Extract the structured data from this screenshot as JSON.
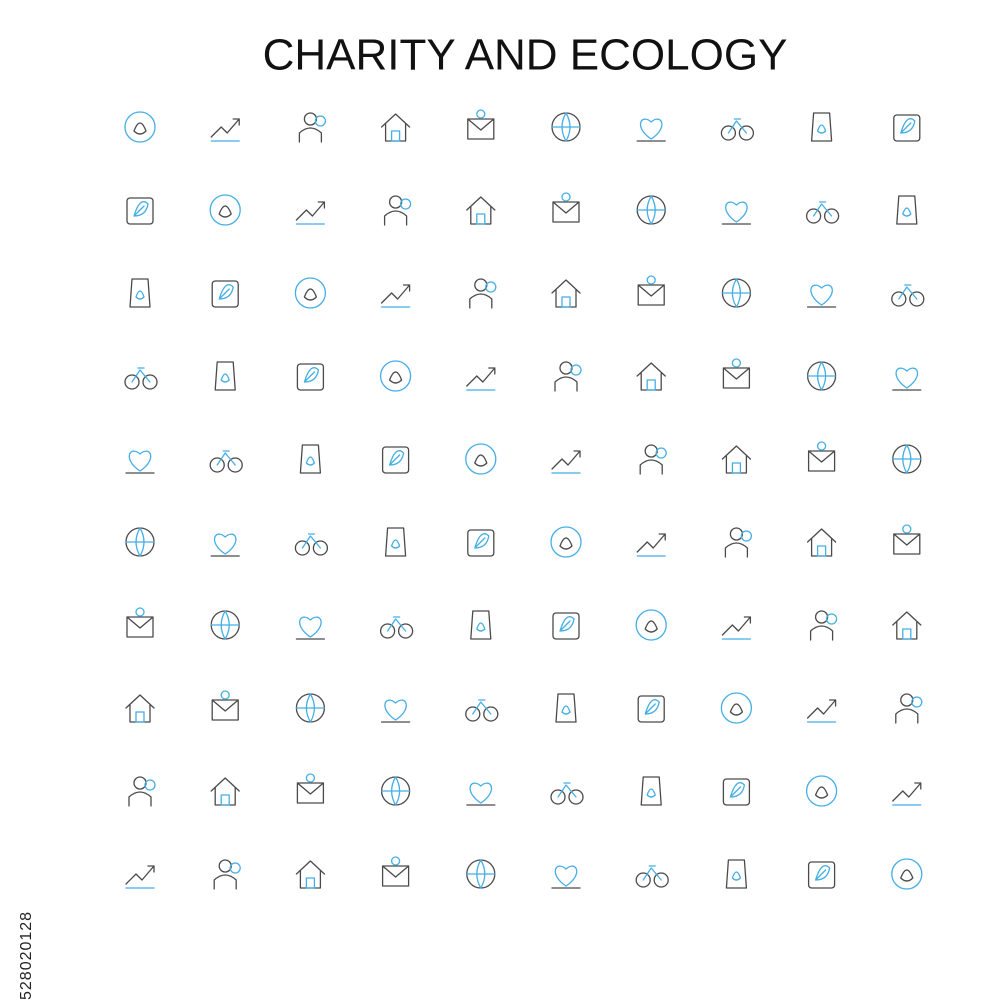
{
  "header": {
    "title": "CHARITY AND ECOLOGY"
  },
  "watermark": {
    "id": "528020128"
  }
}
